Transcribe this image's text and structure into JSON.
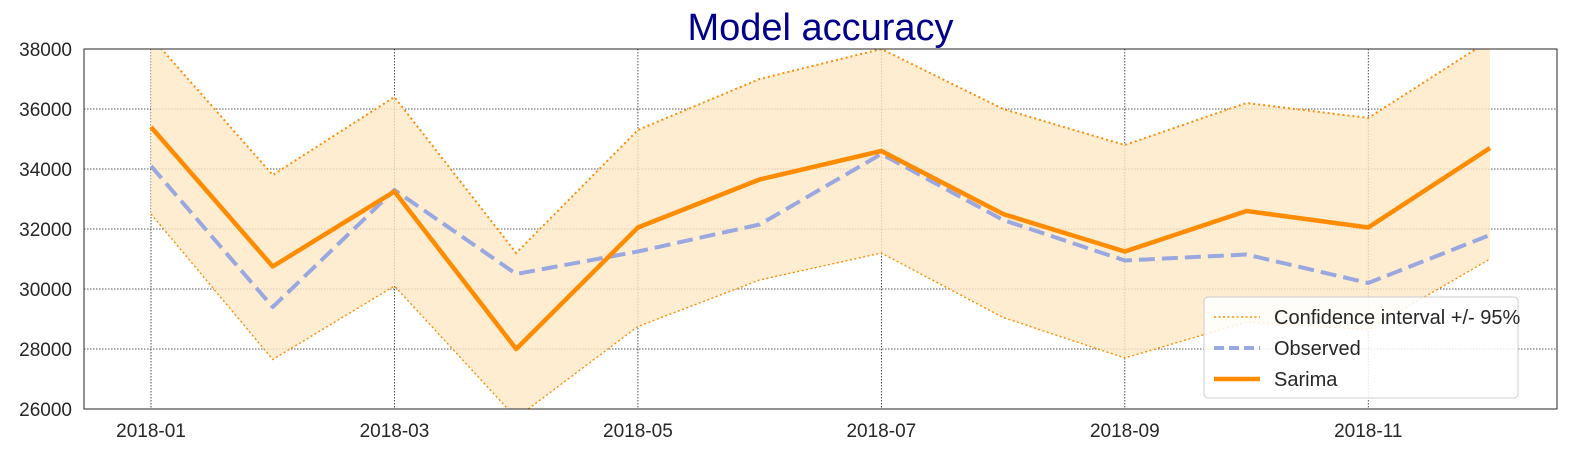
{
  "chart_data": {
    "type": "line",
    "title": "Model accuracy",
    "xlabel": "",
    "ylabel": "",
    "x": [
      "2018-01",
      "2018-02",
      "2018-03",
      "2018-04",
      "2018-05",
      "2018-06",
      "2018-07",
      "2018-08",
      "2018-09",
      "2018-10",
      "2018-11",
      "2018-12"
    ],
    "x_tick_labels": [
      "2018-01",
      "2018-03",
      "2018-05",
      "2018-07",
      "2018-09",
      "2018-11"
    ],
    "ylim": [
      26000,
      38000
    ],
    "y_ticks": [
      26000,
      28000,
      30000,
      32000,
      34000,
      36000,
      38000
    ],
    "grid": true,
    "legend_position": "bottom-right",
    "series": [
      {
        "name": "Confidence interval +/- 95%",
        "role": "upper",
        "color": "#ff8c00",
        "style": "dotted",
        "values": [
          38400,
          33800,
          36400,
          31200,
          35300,
          37000,
          38000,
          36000,
          34800,
          36200,
          35700,
          38300
        ]
      },
      {
        "name": "Confidence interval +/- 95%",
        "role": "lower",
        "color": "#ff8c00",
        "style": "dotted",
        "values": [
          32500,
          27650,
          30100,
          25700,
          28750,
          30300,
          31200,
          29050,
          27700,
          28900,
          28650,
          31000
        ]
      },
      {
        "name": "Observed",
        "color": "#9aa8e0",
        "style": "dashed",
        "values": [
          34100,
          29400,
          33300,
          30500,
          31250,
          32150,
          34500,
          32300,
          30950,
          31150,
          30200,
          31800
        ]
      },
      {
        "name": "Sarima",
        "color": "#ff8c00",
        "style": "solid",
        "values": [
          35400,
          30750,
          33250,
          28000,
          32050,
          33650,
          34600,
          32500,
          31250,
          32600,
          32050,
          34700
        ]
      }
    ],
    "legend": [
      "Confidence interval +/- 95%",
      "Observed",
      "Sarima"
    ],
    "colors": {
      "band_fill": "#ffe9c7",
      "sarima": "#ff8c00",
      "observed": "#9aa8e0",
      "title": "#00008b"
    }
  }
}
